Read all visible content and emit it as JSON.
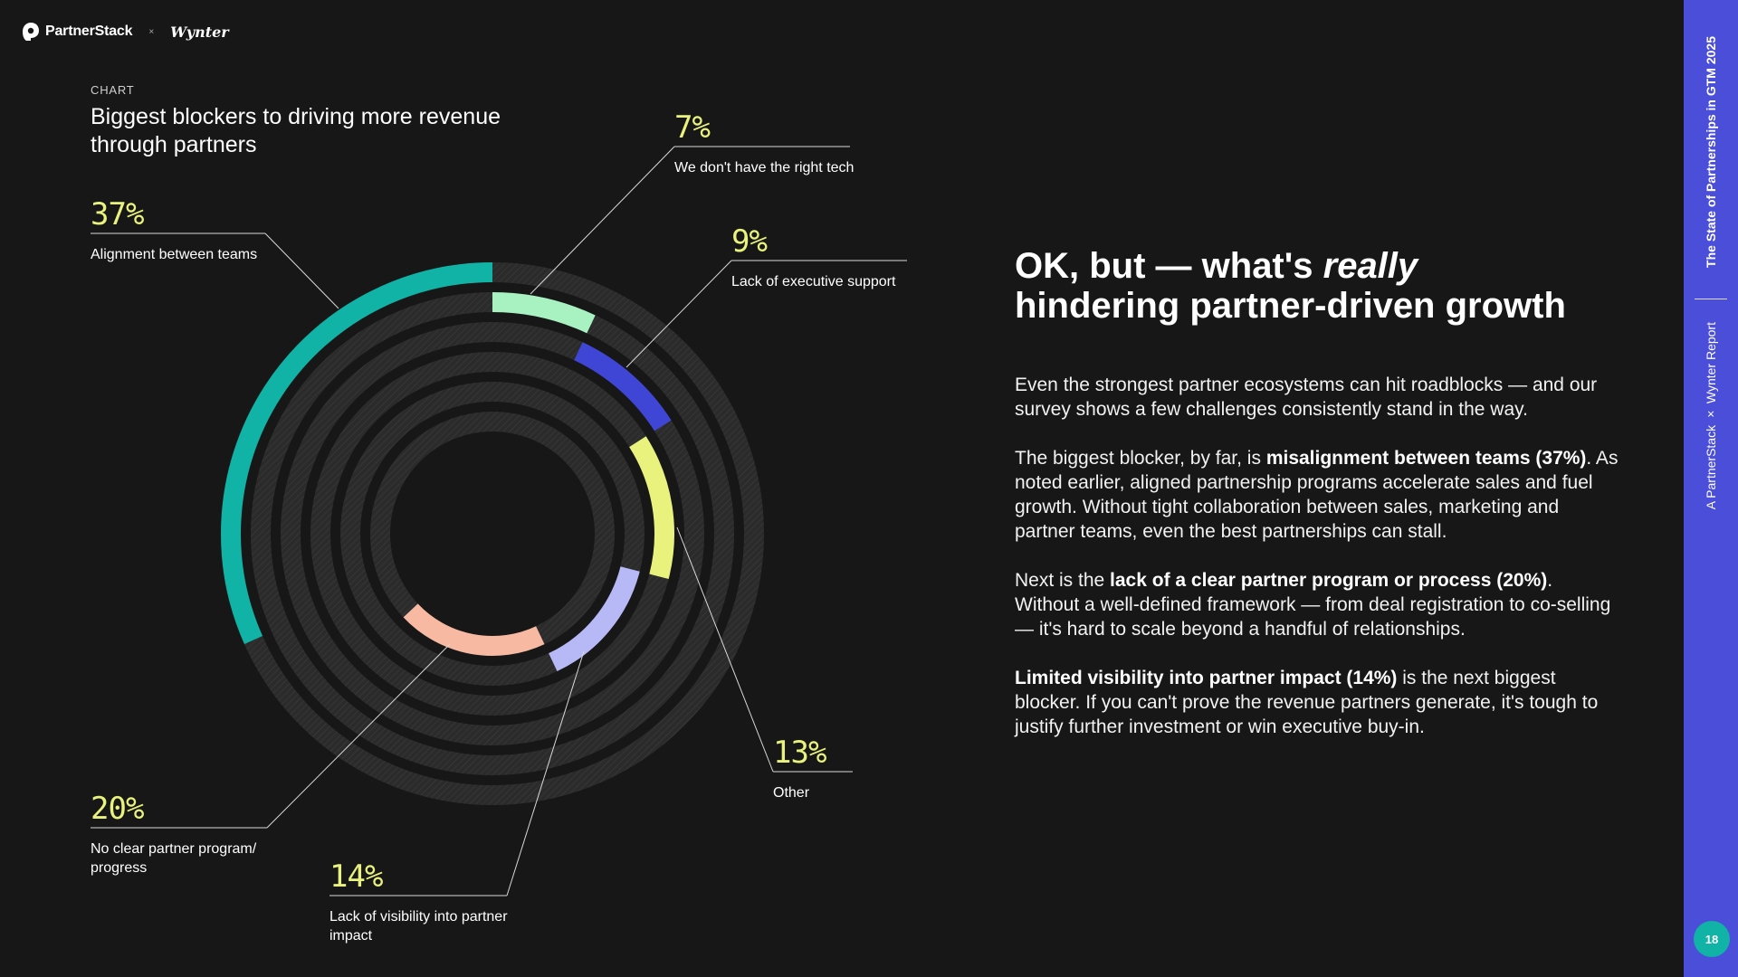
{
  "header": {
    "partnerstack_logo": "PartnerStack",
    "separator": "×",
    "wynter_logo": "Wynter"
  },
  "chart": {
    "kicker": "CHART",
    "title": "Biggest blockers to driving more revenue through partners"
  },
  "chart_data": {
    "type": "radial-bar",
    "title": "Biggest blockers to driving more revenue through partners",
    "unit": "%",
    "max": 100,
    "series": [
      {
        "category": "Alignment between teams",
        "value": 37,
        "value_label": "37%",
        "color": "#10b3a6"
      },
      {
        "category": "We don't have the right tech",
        "value": 7,
        "value_label": "7%",
        "color": "#a8f2c2"
      },
      {
        "category": "Lack of executive support",
        "value": 9,
        "value_label": "9%",
        "color": "#3f46d6"
      },
      {
        "category": "Other",
        "value": 13,
        "value_label": "13%",
        "color": "#e8f27c"
      },
      {
        "category": "Lack of visibility into partner impact",
        "value": 14,
        "value_label": "14%",
        "color": "#b6b9f5"
      },
      {
        "category": "No clear partner program/ progress",
        "value": 20,
        "value_label": "20%",
        "color": "#f7b9a1"
      }
    ],
    "track_color": "#2e2e2e",
    "label_color": "#e8f27c"
  },
  "right": {
    "headline_pre": "OK, but — what's ",
    "headline_em": "really",
    "headline_post": "hindering partner-driven growth",
    "p1": "Even the strongest partner ecosystems can hit roadblocks — and our survey shows a few challenges consistently stand in the way.",
    "p2_pre": "The biggest blocker, by far, is ",
    "p2_bold": "misalignment between teams (37%)",
    "p2_post": ". As noted earlier, aligned partnership programs accelerate sales and fuel growth. Without tight collaboration between sales, marketing and partner teams, even the best partnerships can stall.",
    "p3_pre": "Next is the ",
    "p3_bold": "lack of a clear partner program or process (20%)",
    "p3_post": ". Without a well-defined framework — from deal registration to co-selling — it's hard to scale beyond a handful of relationships.",
    "p4_bold": "Limited visibility into partner impact (14%)",
    "p4_post": " is the next biggest blocker. If you can't prove the revenue partners generate, it's tough to justify further investment or win executive buy-in."
  },
  "sidebar": {
    "title": "The State of Partnerships in GTM 2025",
    "subtitle": "A PartnerStack × Wynter Report",
    "page_number": "18"
  }
}
